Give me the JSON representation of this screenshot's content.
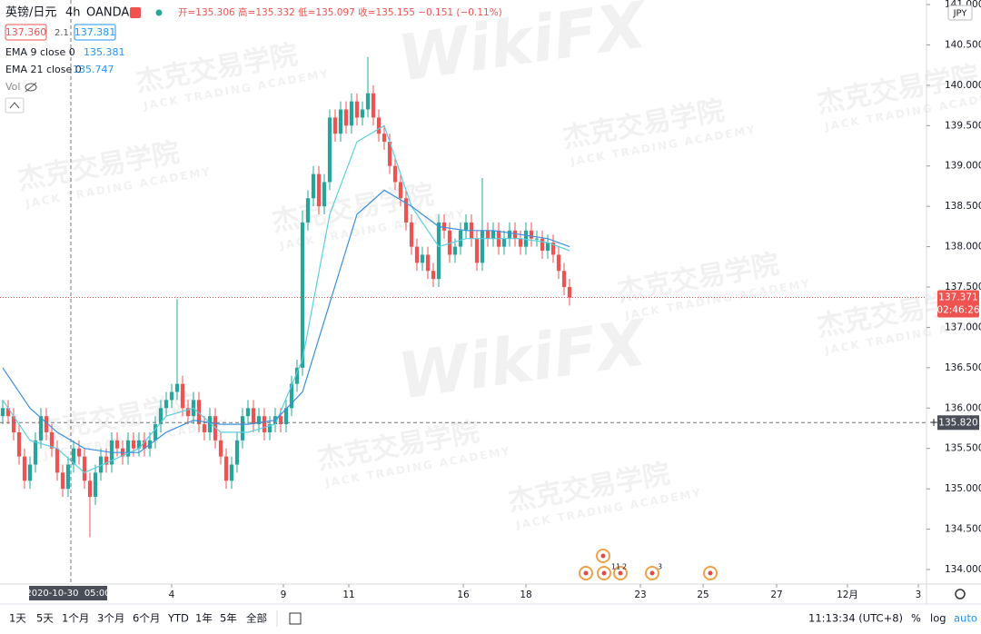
{
  "chart_data": {
    "type": "candlestick",
    "symbol": "英镑/日元",
    "interval": "4h",
    "exchange": "OANDA",
    "ohlc_text": "开=135.306 高=135.332 低=135.097 收=135.155 −0.151 (−0.11%)",
    "bid": {
      "value": 137.36,
      "label": "137.360"
    },
    "spread": 2.1,
    "ask": 137.381,
    "indicators": [
      {
        "name": "EMA 9 close 0",
        "value": 135.381,
        "color": "#5ccfe0",
        "x": [
          0,
          5,
          10,
          15,
          20,
          25,
          30,
          35,
          40,
          45,
          50,
          55,
          60,
          65,
          70,
          75,
          80,
          85,
          90,
          95,
          100,
          104
        ],
        "values": [
          136.1,
          135.6,
          135.5,
          135.2,
          135.35,
          135.5,
          135.9,
          136.0,
          135.7,
          135.7,
          135.8,
          136.6,
          138.4,
          139.3,
          139.5,
          138.5,
          138.0,
          138.1,
          138.1,
          138.1,
          138.05,
          137.95
        ]
      },
      {
        "name": "EMA 21 close 0",
        "value": 135.747,
        "color": "#3b8fde",
        "x": [
          0,
          5,
          10,
          15,
          20,
          25,
          30,
          35,
          40,
          45,
          50,
          55,
          60,
          65,
          70,
          75,
          80,
          85,
          90,
          95,
          100,
          104
        ],
        "values": [
          136.5,
          136.0,
          135.7,
          135.5,
          135.45,
          135.45,
          135.7,
          135.85,
          135.8,
          135.8,
          135.85,
          136.2,
          137.3,
          138.4,
          138.7,
          138.5,
          138.25,
          138.2,
          138.2,
          138.15,
          138.1,
          138.0
        ]
      }
    ],
    "volume_label": "Vol",
    "open": [
      135.9,
      136.0,
      135.9,
      135.7,
      135.4,
      135.1,
      135.3,
      135.6,
      135.9,
      135.7,
      135.5,
      135.2,
      135.0,
      135.3,
      135.5,
      135.4,
      135.1,
      134.9,
      135.2,
      135.4,
      135.3,
      135.6,
      135.5,
      135.4,
      135.6,
      135.5,
      135.6,
      135.5,
      135.6,
      135.8,
      136.0,
      136.1,
      136.2,
      136.3,
      136.0,
      135.9,
      136.1,
      135.8,
      135.7,
      135.9,
      135.6,
      135.4,
      135.1,
      135.3,
      135.6,
      135.9,
      136.0,
      135.8,
      135.9,
      135.7,
      135.8,
      135.9,
      135.8,
      136.0,
      136.3,
      136.5,
      138.3,
      138.6,
      138.9,
      138.5,
      138.8,
      139.6,
      139.4,
      139.7,
      139.5,
      139.8,
      139.6,
      139.7,
      139.9,
      139.6,
      139.4,
      139.3,
      139.0,
      138.8,
      138.6,
      138.3,
      138.0,
      137.8,
      137.9,
      137.7,
      137.6,
      138.3,
      138.2,
      137.9,
      138.0,
      138.2,
      138.3,
      138.1,
      137.8,
      138.2,
      138.1,
      138.2,
      138.0,
      138.1,
      138.2,
      138.1,
      138.0,
      138.2,
      138.1,
      138.1,
      137.95,
      138.05,
      137.9,
      137.7,
      137.5
    ],
    "high": [
      136.1,
      136.1,
      136.0,
      135.8,
      135.5,
      135.4,
      135.7,
      136.0,
      136.0,
      135.8,
      135.6,
      135.3,
      135.4,
      135.6,
      135.6,
      135.5,
      135.2,
      135.3,
      135.5,
      135.5,
      135.7,
      135.7,
      135.6,
      135.7,
      135.7,
      135.7,
      135.7,
      135.7,
      135.9,
      136.1,
      136.2,
      136.3,
      137.35,
      136.4,
      136.1,
      136.2,
      136.2,
      135.9,
      136.0,
      136.0,
      135.7,
      135.5,
      135.4,
      135.7,
      136.0,
      136.1,
      136.1,
      136.0,
      136.0,
      135.9,
      136.0,
      136.0,
      136.1,
      136.4,
      136.6,
      138.45,
      138.7,
      139.0,
      139.0,
      138.9,
      139.7,
      139.7,
      139.8,
      139.8,
      139.9,
      139.9,
      139.8,
      140.35,
      140.0,
      139.7,
      139.5,
      139.4,
      139.1,
      138.9,
      138.7,
      138.4,
      138.1,
      138.0,
      138.0,
      137.8,
      138.4,
      138.4,
      138.3,
      138.1,
      138.3,
      138.4,
      138.4,
      138.2,
      138.85,
      138.3,
      138.3,
      138.3,
      138.2,
      138.3,
      138.3,
      138.2,
      138.3,
      138.3,
      138.2,
      138.2,
      138.15,
      138.15,
      138.0,
      137.8,
      137.6
    ],
    "low": [
      135.8,
      135.8,
      135.6,
      135.3,
      135.0,
      135.0,
      135.2,
      135.5,
      135.6,
      135.4,
      135.1,
      134.9,
      134.9,
      135.2,
      135.3,
      135.0,
      134.4,
      134.8,
      135.1,
      135.2,
      135.2,
      135.4,
      135.3,
      135.3,
      135.4,
      135.4,
      135.4,
      135.4,
      135.5,
      135.7,
      135.9,
      136.0,
      136.1,
      135.9,
      135.8,
      135.8,
      135.7,
      135.6,
      135.6,
      135.5,
      135.3,
      135.0,
      135.0,
      135.2,
      135.5,
      135.8,
      135.7,
      135.7,
      135.6,
      135.6,
      135.7,
      135.7,
      135.7,
      135.9,
      136.2,
      136.4,
      138.2,
      138.5,
      138.4,
      138.4,
      138.7,
      139.3,
      139.3,
      139.4,
      139.4,
      139.5,
      139.5,
      139.6,
      139.5,
      139.3,
      139.2,
      138.9,
      138.7,
      138.5,
      138.2,
      137.9,
      137.7,
      137.7,
      137.6,
      137.5,
      137.5,
      138.1,
      137.8,
      137.8,
      137.9,
      138.1,
      138.0,
      137.7,
      137.7,
      138.0,
      138.0,
      137.9,
      137.9,
      138.0,
      138.0,
      137.9,
      137.9,
      138.0,
      138.0,
      137.85,
      137.85,
      137.8,
      137.6,
      137.4,
      137.27
    ],
    "close": [
      136.0,
      135.9,
      135.7,
      135.4,
      135.1,
      135.3,
      135.6,
      135.9,
      135.7,
      135.5,
      135.2,
      135.0,
      135.3,
      135.5,
      135.4,
      135.1,
      134.9,
      135.2,
      135.4,
      135.3,
      135.6,
      135.5,
      135.4,
      135.6,
      135.5,
      135.6,
      135.5,
      135.6,
      135.8,
      136.0,
      136.1,
      136.2,
      136.3,
      136.0,
      135.9,
      136.1,
      135.8,
      135.7,
      135.9,
      135.6,
      135.4,
      135.1,
      135.3,
      135.6,
      135.9,
      136.0,
      135.8,
      135.9,
      135.7,
      135.8,
      135.9,
      135.8,
      136.0,
      136.3,
      136.5,
      138.3,
      138.6,
      138.9,
      138.5,
      138.8,
      139.6,
      139.4,
      139.7,
      139.5,
      139.8,
      139.6,
      139.7,
      139.9,
      139.6,
      139.4,
      139.3,
      139.0,
      138.8,
      138.6,
      138.3,
      138.0,
      137.8,
      137.9,
      137.7,
      137.6,
      138.3,
      138.2,
      137.9,
      138.0,
      138.2,
      138.3,
      138.1,
      137.8,
      138.2,
      138.1,
      138.2,
      138.0,
      138.1,
      138.2,
      138.1,
      138.0,
      138.2,
      138.1,
      138.1,
      137.95,
      138.05,
      137.9,
      137.7,
      137.5,
      137.37
    ],
    "up_color": "#26a69a",
    "down_color": "#ef5350",
    "currency": "JPY",
    "ylim": [
      134.0,
      141.0
    ],
    "yticks": [
      {
        "value": 134.0,
        "label": "134.000"
      },
      {
        "value": 134.5,
        "label": "134.500"
      },
      {
        "value": 135.0,
        "label": "135.000"
      },
      {
        "value": 135.5,
        "label": "135.500"
      },
      {
        "value": 136.0,
        "label": "136.000"
      },
      {
        "value": 136.5,
        "label": "136.500"
      },
      {
        "value": 137.0,
        "label": "137.000"
      },
      {
        "value": 137.5,
        "label": "137.500"
      },
      {
        "value": 138.0,
        "label": "138.000"
      },
      {
        "value": 138.5,
        "label": "138.500"
      },
      {
        "value": 139.0,
        "label": "139.000"
      },
      {
        "value": 139.5,
        "label": "139.500"
      },
      {
        "value": 140.0,
        "label": "140.000"
      },
      {
        "value": 140.5,
        "label": "140.500"
      },
      {
        "value": 141.0,
        "label": "141.000"
      }
    ],
    "xlim": [
      -0.5,
      169.5
    ],
    "xticks": [
      {
        "value": 31,
        "label": "4"
      },
      {
        "value": 51.5,
        "label": "9"
      },
      {
        "value": 63.5,
        "label": "11"
      },
      {
        "value": 84.5,
        "label": "16"
      },
      {
        "value": 96,
        "label": "18"
      },
      {
        "value": 117,
        "label": "23"
      },
      {
        "value": 128.5,
        "label": "25"
      },
      {
        "value": 142,
        "label": "27"
      },
      {
        "value": 155,
        "label": "12月"
      },
      {
        "value": 168,
        "label": "3"
      }
    ],
    "last_price": 137.371,
    "countdown": "02:46:26",
    "crosshair": {
      "price": {
        "value": 135.82,
        "label": "135.820"
      },
      "x": 12.5,
      "time": "2020-10-30  05:00"
    },
    "events": [
      "11",
      "2",
      "3"
    ]
  },
  "toolbar": {
    "ranges": [
      "1天",
      "5天",
      "1个月",
      "3个月",
      "6个月",
      "YTD",
      "1年",
      "5年",
      "全部"
    ],
    "clock": "11:13:34 (UTC+8)",
    "percent": "%",
    "log": "log",
    "auto": "auto"
  },
  "watermark": {
    "brand": "WikiFX",
    "cn": "杰克交易学院",
    "en": "JACK TRADING ACADEMY"
  }
}
